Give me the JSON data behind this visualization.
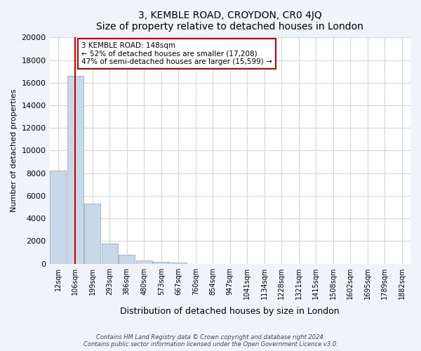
{
  "title": "3, KEMBLE ROAD, CROYDON, CR0 4JQ",
  "subtitle": "Size of property relative to detached houses in London",
  "xlabel": "Distribution of detached houses by size in London",
  "ylabel": "Number of detached properties",
  "bar_values": [
    8200,
    16600,
    5300,
    1750,
    750,
    270,
    170,
    100,
    0,
    0,
    0,
    0,
    0,
    0,
    0,
    0,
    0,
    0,
    0,
    0,
    0
  ],
  "bar_labels": [
    "12sqm",
    "106sqm",
    "199sqm",
    "293sqm",
    "386sqm",
    "480sqm",
    "573sqm",
    "667sqm",
    "760sqm",
    "854sqm",
    "947sqm",
    "1041sqm",
    "1134sqm",
    "1228sqm",
    "1321sqm",
    "1415sqm",
    "1508sqm",
    "1602sqm",
    "1695sqm",
    "1789sqm",
    "1882sqm"
  ],
  "bar_color": "#c8d8e8",
  "bar_edge_color": "#a0b8d0",
  "property_line_x": 1.0,
  "property_line_color": "#cc0000",
  "annotation_title": "3 KEMBLE ROAD: 148sqm",
  "annotation_line1": "← 52% of detached houses are smaller (17,208)",
  "annotation_line2": "47% of semi-detached houses are larger (15,599) →",
  "annotation_box_color": "#ffffff",
  "annotation_box_edge_color": "#cc0000",
  "ylim": [
    0,
    20000
  ],
  "yticks": [
    0,
    2000,
    4000,
    6000,
    8000,
    10000,
    12000,
    14000,
    16000,
    18000,
    20000
  ],
  "footer_line1": "Contains HM Land Registry data © Crown copyright and database right 2024.",
  "footer_line2": "Contains public sector information licensed under the Open Government Licence v3.0.",
  "bg_color": "#f0f4f8",
  "plot_bg_color": "#ffffff",
  "grid_color": "#d0d8e0"
}
